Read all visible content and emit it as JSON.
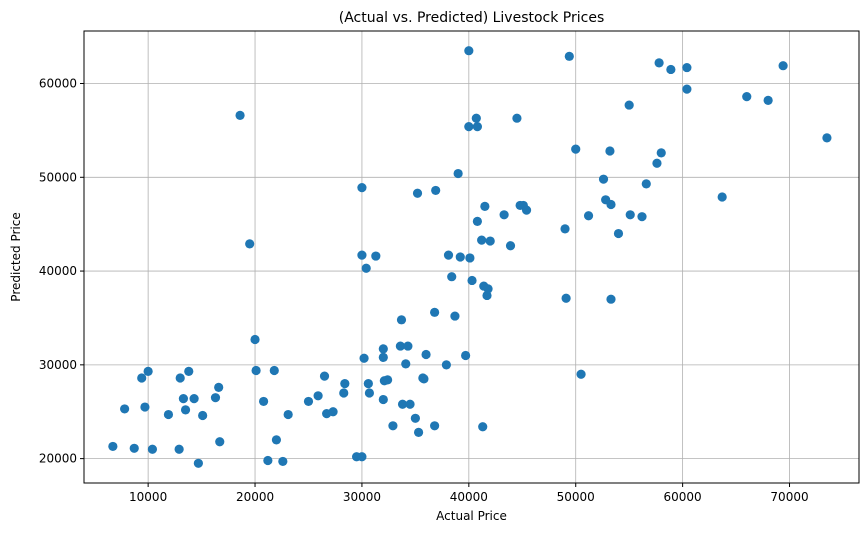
{
  "chart_data": {
    "type": "scatter",
    "title": "(Actual vs. Predicted) Livestock Prices",
    "xlabel": "Actual Price",
    "ylabel": "Predicted Price",
    "xlim": [
      4000,
      76500
    ],
    "ylim": [
      17400,
      65600
    ],
    "xticks": [
      10000,
      20000,
      30000,
      40000,
      50000,
      60000,
      70000
    ],
    "yticks": [
      20000,
      30000,
      40000,
      50000,
      60000
    ],
    "grid": true,
    "point_color": "#1f77b4",
    "points": [
      [
        6700,
        21300
      ],
      [
        7800,
        25300
      ],
      [
        8700,
        21100
      ],
      [
        9400,
        28600
      ],
      [
        9700,
        25500
      ],
      [
        10000,
        29300
      ],
      [
        10400,
        21000
      ],
      [
        11900,
        24700
      ],
      [
        12900,
        21000
      ],
      [
        13000,
        28600
      ],
      [
        13300,
        26400
      ],
      [
        13500,
        25200
      ],
      [
        13800,
        29300
      ],
      [
        14300,
        26400
      ],
      [
        14700,
        19500
      ],
      [
        15100,
        24600
      ],
      [
        16300,
        26500
      ],
      [
        16600,
        27600
      ],
      [
        16700,
        21800
      ],
      [
        18600,
        56600
      ],
      [
        19500,
        42900
      ],
      [
        20000,
        32700
      ],
      [
        20100,
        29400
      ],
      [
        20800,
        26100
      ],
      [
        21200,
        19800
      ],
      [
        21800,
        29400
      ],
      [
        22000,
        22000
      ],
      [
        22600,
        19700
      ],
      [
        23100,
        24700
      ],
      [
        25000,
        26100
      ],
      [
        25900,
        26700
      ],
      [
        26500,
        28800
      ],
      [
        26700,
        24800
      ],
      [
        27300,
        25000
      ],
      [
        28300,
        27000
      ],
      [
        28400,
        28000
      ],
      [
        29500,
        20200
      ],
      [
        30000,
        20200
      ],
      [
        30000,
        48900
      ],
      [
        30000,
        41700
      ],
      [
        30200,
        30700
      ],
      [
        30400,
        40300
      ],
      [
        30600,
        28000
      ],
      [
        30700,
        27000
      ],
      [
        31300,
        41600
      ],
      [
        32000,
        31700
      ],
      [
        32000,
        30800
      ],
      [
        32000,
        26300
      ],
      [
        32100,
        28300
      ],
      [
        32400,
        28400
      ],
      [
        32900,
        23500
      ],
      [
        33600,
        32000
      ],
      [
        33700,
        34800
      ],
      [
        33800,
        25800
      ],
      [
        34100,
        30100
      ],
      [
        34300,
        32000
      ],
      [
        34500,
        25800
      ],
      [
        35000,
        24300
      ],
      [
        35200,
        48300
      ],
      [
        35300,
        22800
      ],
      [
        35700,
        28600
      ],
      [
        35800,
        28500
      ],
      [
        36000,
        31100
      ],
      [
        36800,
        35600
      ],
      [
        36800,
        23500
      ],
      [
        36900,
        48600
      ],
      [
        37900,
        30000
      ],
      [
        38100,
        41700
      ],
      [
        38400,
        39400
      ],
      [
        38700,
        35200
      ],
      [
        39000,
        50400
      ],
      [
        39200,
        41500
      ],
      [
        39700,
        31000
      ],
      [
        40000,
        63500
      ],
      [
        40000,
        55400
      ],
      [
        40100,
        41400
      ],
      [
        40300,
        39000
      ],
      [
        40700,
        56300
      ],
      [
        40800,
        55400
      ],
      [
        40800,
        45300
      ],
      [
        41200,
        43300
      ],
      [
        41300,
        23400
      ],
      [
        41400,
        38400
      ],
      [
        41500,
        46900
      ],
      [
        41700,
        37400
      ],
      [
        41800,
        38100
      ],
      [
        42000,
        43200
      ],
      [
        43300,
        46000
      ],
      [
        43900,
        42700
      ],
      [
        44500,
        56300
      ],
      [
        44800,
        47000
      ],
      [
        45100,
        47000
      ],
      [
        45400,
        46500
      ],
      [
        49000,
        44500
      ],
      [
        49100,
        37100
      ],
      [
        49400,
        62900
      ],
      [
        50000,
        53000
      ],
      [
        50500,
        29000
      ],
      [
        51200,
        45900
      ],
      [
        52600,
        49800
      ],
      [
        52800,
        47600
      ],
      [
        53200,
        52800
      ],
      [
        53300,
        47100
      ],
      [
        53300,
        37000
      ],
      [
        54000,
        44000
      ],
      [
        55000,
        57700
      ],
      [
        55100,
        46000
      ],
      [
        56200,
        45800
      ],
      [
        56600,
        49300
      ],
      [
        57600,
        51500
      ],
      [
        57800,
        62200
      ],
      [
        58000,
        52600
      ],
      [
        58900,
        61500
      ],
      [
        60400,
        61700
      ],
      [
        60400,
        59400
      ],
      [
        63700,
        47900
      ],
      [
        66000,
        58600
      ],
      [
        68000,
        58200
      ],
      [
        69400,
        61900
      ],
      [
        73500,
        54200
      ]
    ]
  }
}
